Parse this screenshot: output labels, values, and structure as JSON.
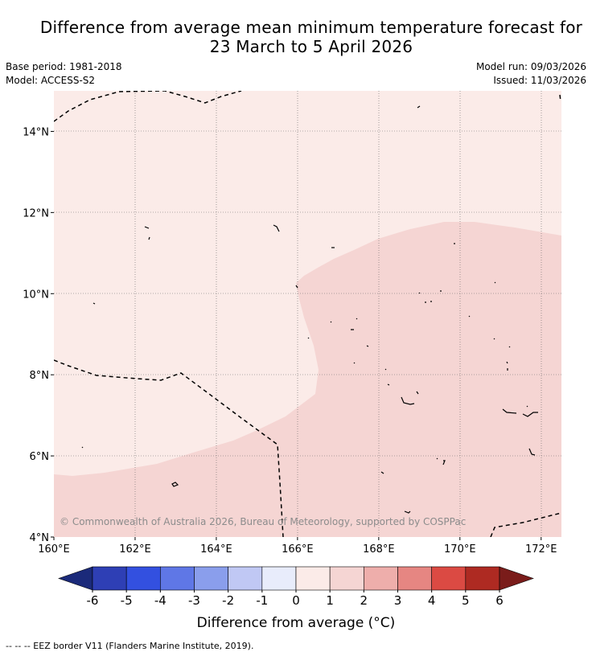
{
  "title": {
    "line1": "Difference from average mean minimum temperature forecast for",
    "line2": "23 March to 5 April 2026"
  },
  "meta": {
    "base_period": "Base period: 1981-2018",
    "model": "Model: ACCESS-S2",
    "model_run": "Model run: 09/03/2026",
    "issued": "Issued: 11/03/2026"
  },
  "map": {
    "lon_range": [
      160,
      172.5
    ],
    "lat_range": [
      4,
      15
    ],
    "x_ticks": [
      "160°E",
      "162°E",
      "164°E",
      "166°E",
      "168°E",
      "170°E",
      "172°E"
    ],
    "y_ticks": [
      "4°N",
      "6°N",
      "8°N",
      "10°N",
      "12°N",
      "14°N"
    ],
    "categories": {
      "0 to 1": "#fbebe8",
      "1 to 2": "#f5d5d3"
    },
    "watermark": "© Commonwealth of Australia 2026, Bureau of Meteorology, supported by COSPPac"
  },
  "colorbar": {
    "ticks": [
      "-6",
      "-5",
      "-4",
      "-3",
      "-2",
      "-1",
      "0",
      "1",
      "2",
      "3",
      "4",
      "5",
      "6"
    ],
    "colors": [
      "#1b2a7a",
      "#2e3fb5",
      "#3350e0",
      "#5f77e6",
      "#8a9eec",
      "#c0c8f4",
      "#e8ecfb",
      "#fbebe8",
      "#f5d5d3",
      "#eeaeab",
      "#e68682",
      "#db4a43",
      "#ae2a22",
      "#7a1c1a"
    ],
    "label": "Difference from average (°C)"
  },
  "footer": "--  --  -- EEZ border V11 (Flanders Marine Institute, 2019)."
}
